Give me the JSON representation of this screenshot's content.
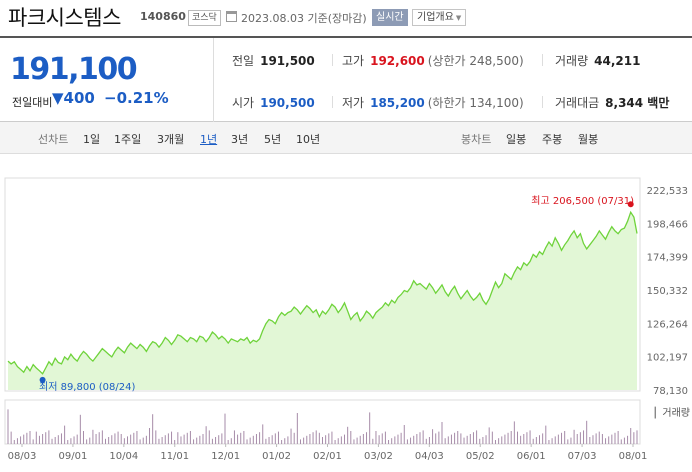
{
  "header": {
    "name": "파크시스템스",
    "code": "140860",
    "market": "코스닥",
    "date": "2023.08.03  기준(장마감)",
    "realtime_label": "실시간",
    "overview_label": "기업개요"
  },
  "quote": {
    "price": "191,100",
    "change_label": "전일대비",
    "change_value": "▼400",
    "change_pct": "−0.21%",
    "prev_close_label": "전일",
    "prev_close": "191,500",
    "high_label": "고가",
    "high": "192,600",
    "upper_limit": "(상한가 248,500)",
    "volume_label": "거래량",
    "volume": "44,211",
    "open_label": "시가",
    "open": "190,500",
    "low_label": "저가",
    "low": "185,200",
    "lower_limit": "(하한가 134,100)",
    "value_label": "거래대금",
    "value": "8,344 백만"
  },
  "toolbar": {
    "line_label": "선차트",
    "periods": [
      "1일",
      "1주일",
      "3개월",
      "1년",
      "3년",
      "5년",
      "10년"
    ],
    "active_period": "1년",
    "candle_label": "봉차트",
    "candles": [
      "일봉",
      "주봉",
      "월봉"
    ]
  },
  "colors": {
    "accent": "#1c5dc4",
    "up": "#d9141e",
    "line": "#6fd33b",
    "area": "#e2f7d6"
  },
  "chart_data": {
    "type": "area",
    "title": "",
    "y_ticks": [
      "222,533",
      "198,466",
      "174,399",
      "150,332",
      "126,264",
      "102,197",
      "78,130"
    ],
    "ylim": [
      78130,
      222533
    ],
    "x_ticks": [
      "08/03",
      "09/01",
      "10/04",
      "11/01",
      "12/01",
      "01/02",
      "02/01",
      "03/02",
      "04/03",
      "05/02",
      "06/01",
      "07/03",
      "08/01"
    ],
    "high_annotation": "최고  206,500 (07/31)",
    "low_annotation": "최저  89,800 (08/24)",
    "volume_label": "거래량",
    "series": [
      {
        "name": "price",
        "values": [
          99000,
          97000,
          98500,
          95000,
          93000,
          91000,
          95000,
          92000,
          96500,
          94000,
          92000,
          89800,
          94000,
          98500,
          96000,
          101000,
          98000,
          97000,
          102000,
          100000,
          104000,
          101000,
          99000,
          103000,
          106000,
          104000,
          101000,
          99000,
          102000,
          105000,
          108000,
          106000,
          104000,
          102000,
          106000,
          109000,
          107000,
          105000,
          109000,
          112000,
          110000,
          108000,
          111000,
          109000,
          106000,
          110000,
          113000,
          112000,
          109000,
          112000,
          116000,
          114000,
          111000,
          114000,
          118000,
          117000,
          115000,
          113000,
          116000,
          115000,
          113000,
          117000,
          116000,
          113000,
          116000,
          120000,
          118000,
          115000,
          117000,
          115000,
          112000,
          115000,
          114000,
          113000,
          115000,
          114000,
          116000,
          112000,
          114000,
          113000,
          115000,
          121000,
          126000,
          129000,
          128000,
          126000,
          131000,
          134000,
          132000,
          134000,
          135000,
          138000,
          136000,
          133000,
          136000,
          139000,
          137000,
          134000,
          136000,
          131000,
          135000,
          133000,
          136000,
          140000,
          138000,
          134000,
          137000,
          141000,
          135000,
          129000,
          132000,
          134000,
          128000,
          131000,
          135000,
          133000,
          130000,
          134000,
          136000,
          138000,
          141000,
          139000,
          143000,
          141000,
          145000,
          147000,
          150000,
          149000,
          152000,
          157000,
          154000,
          155000,
          153000,
          151000,
          155000,
          152000,
          148000,
          151000,
          154000,
          149000,
          146000,
          150000,
          153000,
          148000,
          144000,
          147000,
          150000,
          146000,
          143000,
          145000,
          148000,
          143000,
          140000,
          144000,
          150000,
          156000,
          152000,
          155000,
          162000,
          160000,
          158000,
          163000,
          167000,
          165000,
          170000,
          168000,
          171000,
          176000,
          174000,
          178000,
          176000,
          181000,
          185000,
          182000,
          188000,
          184000,
          179000,
          183000,
          186000,
          190000,
          193000,
          188000,
          191000,
          184000,
          180000,
          183000,
          186000,
          189000,
          193000,
          190000,
          187000,
          192000,
          196000,
          193000,
          191000,
          194000,
          195000,
          200000,
          206500,
          203000,
          191100
        ]
      }
    ]
  }
}
